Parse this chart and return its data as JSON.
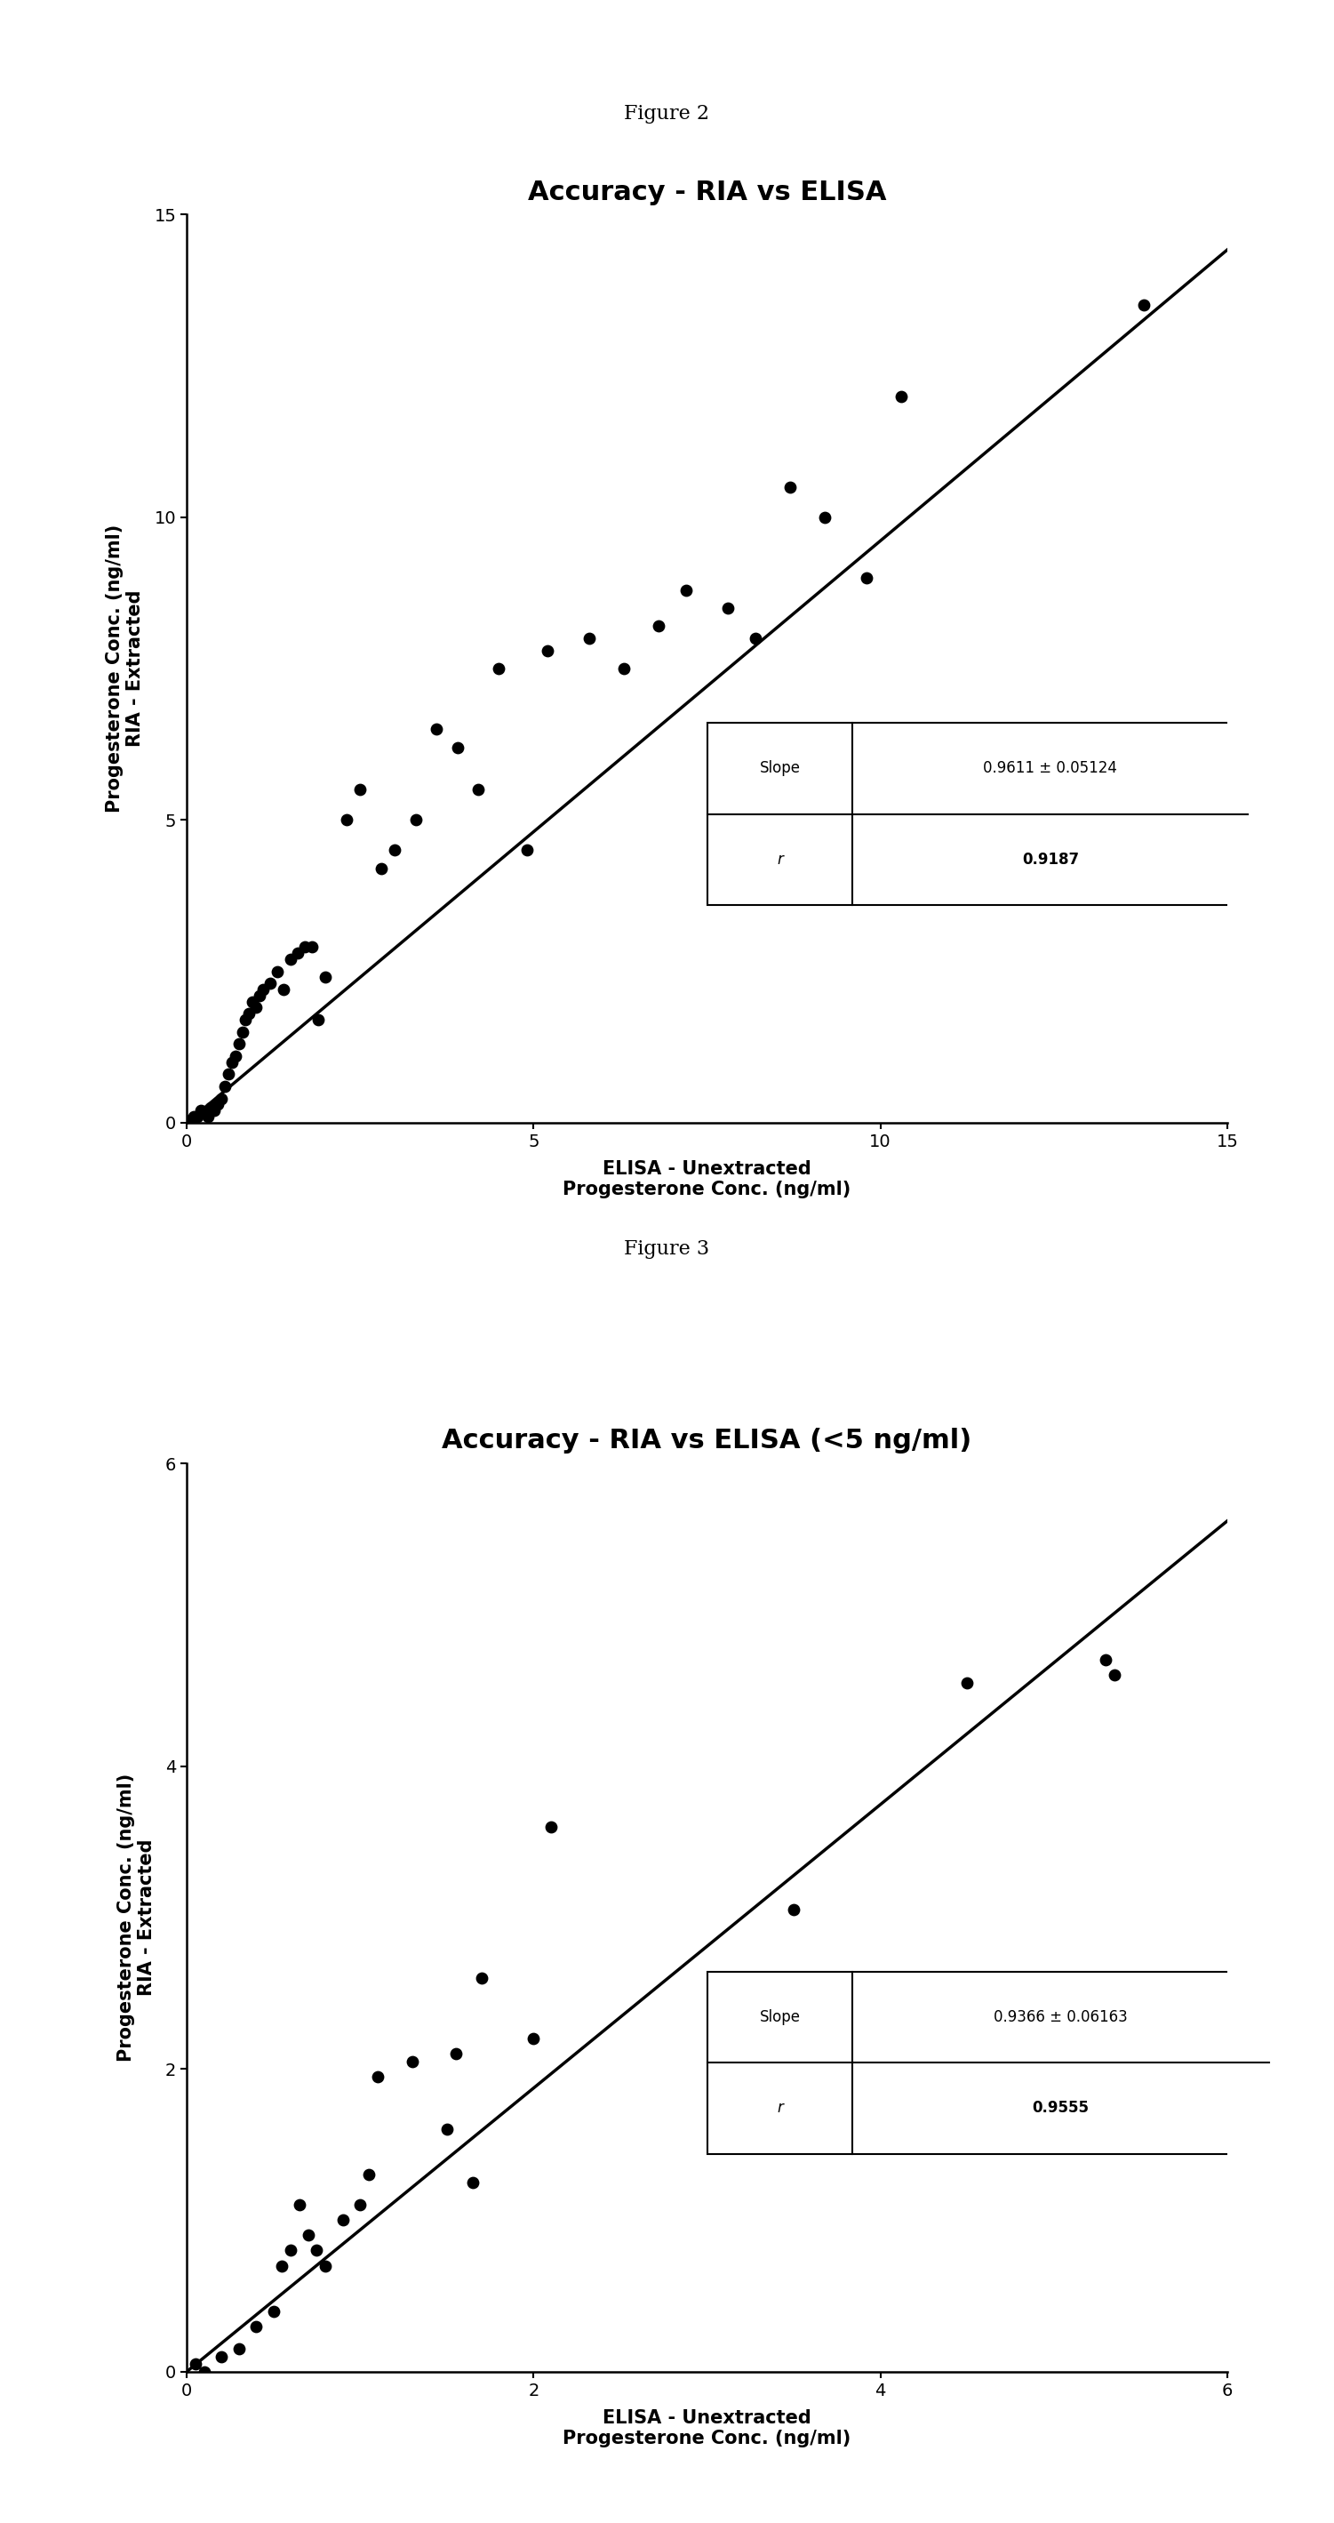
{
  "fig2_title": "Accuracy - RIA vs ELISA",
  "fig3_title": "Accuracy - RIA vs ELISA (<5 ng/ml)",
  "fig_label_2": "Figure 2",
  "fig_label_3": "Figure 3",
  "xlabel": "ELISA - Unextracted\nProgesterone Conc. (ng/ml)",
  "ylabel": "Progesterone Conc. (ng/ml)\nRIA - Extracted",
  "fig2_xlim": [
    0,
    15
  ],
  "fig2_ylim": [
    0,
    15
  ],
  "fig2_xticks": [
    0,
    5,
    10,
    15
  ],
  "fig2_yticks": [
    0,
    5,
    10,
    15
  ],
  "fig3_xlim": [
    0,
    6
  ],
  "fig3_ylim": [
    0,
    6
  ],
  "fig3_xticks": [
    0,
    2,
    4,
    6
  ],
  "fig3_yticks": [
    0,
    2,
    4,
    6
  ],
  "fig2_slope": 0.9611,
  "fig2_slope_text": "0.9611 ± 0.05124",
  "fig2_r": "0.9187",
  "fig3_slope": 0.9366,
  "fig3_slope_text": "0.9366 ± 0.06163",
  "fig3_r": "0.9555",
  "fig2_x": [
    0.05,
    0.1,
    0.15,
    0.2,
    0.3,
    0.35,
    0.4,
    0.45,
    0.5,
    0.55,
    0.6,
    0.65,
    0.7,
    0.75,
    0.8,
    0.85,
    0.9,
    0.95,
    1.0,
    1.05,
    1.1,
    1.2,
    1.3,
    1.4,
    1.5,
    1.6,
    1.7,
    1.8,
    1.9,
    2.0,
    2.3,
    2.5,
    2.8,
    3.0,
    3.3,
    3.6,
    3.9,
    4.2,
    4.5,
    4.9,
    5.2,
    5.8,
    6.3,
    6.8,
    7.2,
    7.8,
    8.2,
    8.7,
    9.2,
    9.8,
    10.3,
    13.8
  ],
  "fig2_y": [
    0.05,
    0.1,
    0.1,
    0.2,
    0.1,
    0.25,
    0.2,
    0.3,
    0.4,
    0.6,
    0.8,
    1.0,
    1.1,
    1.3,
    1.5,
    1.7,
    1.8,
    2.0,
    1.9,
    2.1,
    2.2,
    2.3,
    2.5,
    2.2,
    2.7,
    2.8,
    2.9,
    2.9,
    1.7,
    2.4,
    5.0,
    5.5,
    4.2,
    4.5,
    5.0,
    6.5,
    6.2,
    5.5,
    7.5,
    4.5,
    7.8,
    8.0,
    7.5,
    8.2,
    8.8,
    8.5,
    8.0,
    10.5,
    10.0,
    9.0,
    12.0,
    13.5
  ],
  "fig3_x": [
    0.05,
    0.1,
    0.2,
    0.3,
    0.4,
    0.5,
    0.55,
    0.6,
    0.65,
    0.7,
    0.75,
    0.8,
    0.9,
    1.0,
    1.05,
    1.1,
    1.3,
    1.5,
    1.55,
    1.65,
    1.7,
    2.0,
    2.1,
    3.5,
    4.5,
    5.3,
    5.35
  ],
  "fig3_y": [
    0.05,
    0.0,
    0.1,
    0.15,
    0.3,
    0.4,
    0.7,
    0.8,
    1.1,
    0.9,
    0.8,
    0.7,
    1.0,
    1.1,
    1.3,
    1.95,
    2.05,
    1.6,
    2.1,
    1.25,
    2.6,
    2.2,
    3.6,
    3.05,
    4.55,
    4.7,
    4.6
  ],
  "background_color": "#ffffff",
  "scatter_color": "#000000",
  "line_color": "#000000",
  "scatter_size": 80,
  "title_fontsize": 22,
  "label_fontsize": 15,
  "tick_fontsize": 14,
  "fig_label_fontsize": 16
}
